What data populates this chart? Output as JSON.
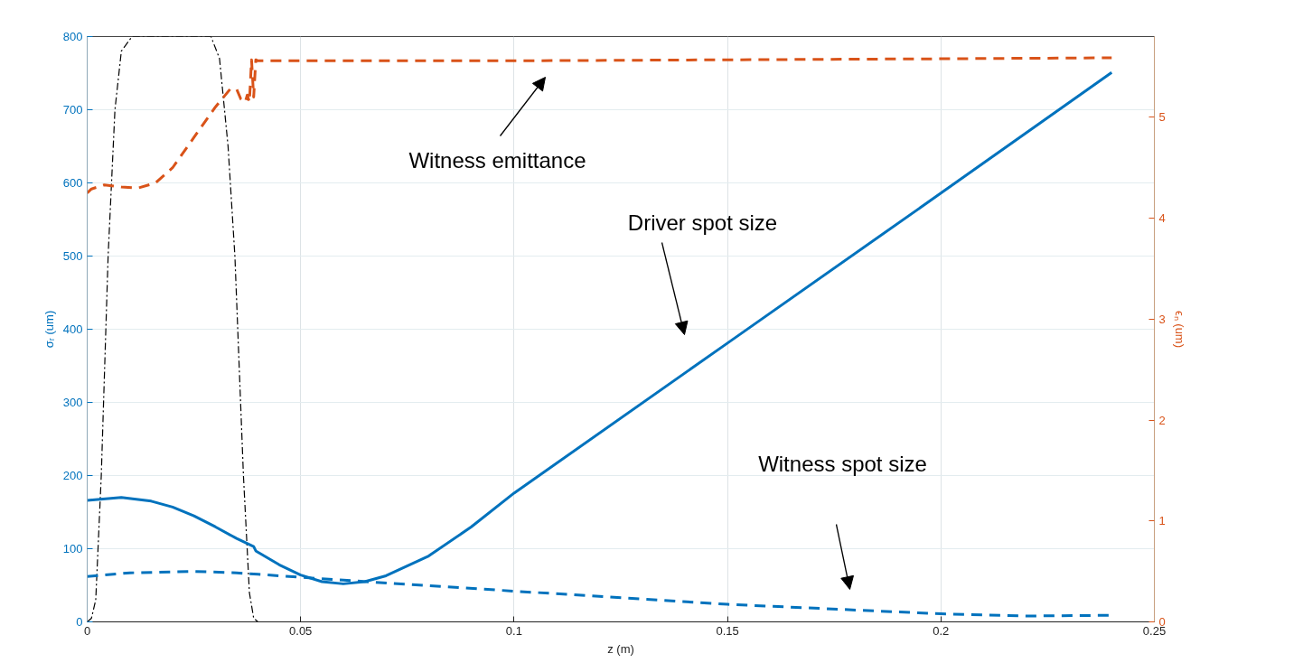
{
  "chart_data": {
    "type": "line",
    "xlabel": "z (m)",
    "ylabel": "σᵣ (um)",
    "y2label": "ϵₙ (um)",
    "xlim": [
      0,
      0.25
    ],
    "xticks": [
      0,
      0.05,
      0.1,
      0.15,
      0.2,
      0.25
    ],
    "ylim": [
      0,
      800
    ],
    "yticks": [
      0,
      100,
      200,
      300,
      400,
      500,
      600,
      700,
      800
    ],
    "y2lim": [
      0,
      5.8
    ],
    "y2ticks": [
      0,
      1,
      2,
      3,
      4,
      5
    ],
    "grid": true,
    "marker": "none",
    "series": [
      {
        "color": "#000000",
        "line_style": "dashdot",
        "x": [
          0,
          0.001,
          0.002,
          0.0033,
          0.0049,
          0.0065,
          0.008,
          0.0105,
          0.029,
          0.031,
          0.033,
          0.0346,
          0.0366,
          0.038,
          0.039,
          0.04
        ],
        "values": [
          0,
          5,
          30,
          200,
          500,
          700,
          780,
          800,
          800,
          770,
          650,
          500,
          200,
          40,
          5,
          0
        ]
      },
      {
        "color": "#d95319",
        "line_style": "dashed",
        "axis": "y2",
        "x": [
          0,
          0.001,
          0.004,
          0.008,
          0.012,
          0.016,
          0.02,
          0.025,
          0.03,
          0.0335,
          0.035,
          0.036,
          0.037,
          0.0375,
          0.038,
          0.0385,
          0.039,
          0.0395,
          0.04,
          0.1,
          0.2,
          0.24
        ],
        "values": [
          4.25,
          4.29,
          4.33,
          4.31,
          4.3,
          4.35,
          4.5,
          4.8,
          5.1,
          5.28,
          5.28,
          5.18,
          5.15,
          5.22,
          5.15,
          5.57,
          5.2,
          5.57,
          5.56,
          5.56,
          5.58,
          5.59
        ]
      },
      {
        "color": "#0072bd",
        "line_style": "solid",
        "x": [
          0,
          0.008,
          0.015,
          0.02,
          0.025,
          0.03,
          0.035,
          0.039,
          0.0395,
          0.045,
          0.05,
          0.055,
          0.06,
          0.065,
          0.07,
          0.08,
          0.09,
          0.1,
          0.15,
          0.2,
          0.24
        ],
        "values": [
          166,
          170,
          165,
          157,
          145,
          130,
          114,
          103,
          97,
          78,
          64,
          55,
          52,
          55,
          63,
          90,
          130,
          176,
          381,
          586,
          751
        ]
      },
      {
        "color": "#0072bd",
        "line_style": "dashed",
        "x": [
          0,
          0.01,
          0.025,
          0.035,
          0.04,
          0.05,
          0.06,
          0.1,
          0.15,
          0.2,
          0.22,
          0.24
        ],
        "values": [
          62,
          67,
          69,
          67,
          65,
          61,
          57,
          42,
          24,
          11,
          8,
          9
        ]
      }
    ],
    "annotations": [
      "Witness emittance",
      "Driver spot size",
      "Witness spot size"
    ]
  }
}
